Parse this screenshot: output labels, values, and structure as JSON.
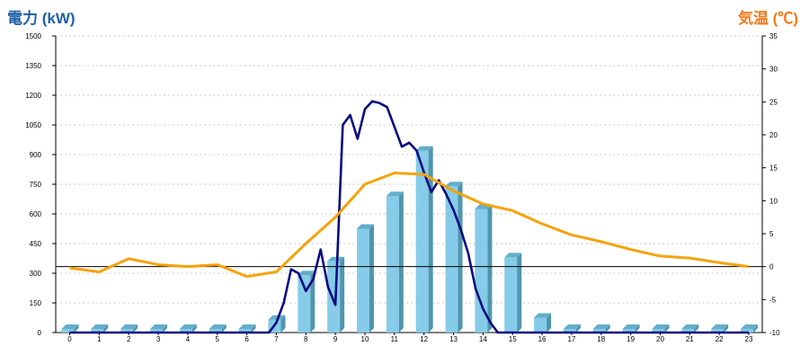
{
  "colors": {
    "left_axis_title": "#1f5fa8",
    "right_axis_title": "#f07a1a",
    "bar_front": "#86cbe8",
    "bar_side": "#4f95ad",
    "bar_top": "#63aec8",
    "power_line": "#0a0a80",
    "temp_line": "#f5a30a",
    "grid": "#c8c8c8",
    "zero_line": "#000000"
  },
  "chart_data": {
    "type": "bar",
    "ylabel": "電力 (kW)",
    "y2label": "気温 (℃)",
    "ylim": [
      0,
      1500
    ],
    "y2lim": [
      -10,
      35
    ],
    "yticks": [
      0,
      150,
      300,
      450,
      600,
      750,
      900,
      1050,
      1200,
      1350,
      1500
    ],
    "y2ticks": [
      -10,
      -5,
      0,
      5,
      10,
      15,
      20,
      25,
      30,
      35
    ],
    "grid": true,
    "categories": [
      "0",
      "1",
      "2",
      "3",
      "4",
      "5",
      "6",
      "7",
      "8",
      "9",
      "10",
      "11",
      "12",
      "13",
      "14",
      "15",
      "16",
      "17",
      "18",
      "19",
      "20",
      "21",
      "22",
      "23"
    ],
    "series": [
      {
        "type": "bar",
        "axis": "left",
        "values": [
          0,
          0,
          0,
          0,
          0,
          0,
          0,
          65,
          290,
          360,
          525,
          690,
          920,
          740,
          625,
          380,
          75,
          0,
          0,
          0,
          0,
          0,
          0,
          0
        ]
      },
      {
        "type": "line",
        "axis": "left",
        "x": [
          0,
          0.5,
          1,
          1.5,
          2,
          2.5,
          3,
          3.5,
          4,
          4.5,
          5,
          5.5,
          6,
          6.5,
          6.75,
          7,
          7.25,
          7.5,
          7.75,
          8,
          8.25,
          8.5,
          8.75,
          9,
          9.25,
          9.5,
          9.75,
          10,
          10.25,
          10.5,
          10.75,
          11,
          11.25,
          11.5,
          11.75,
          12,
          12.25,
          12.5,
          12.75,
          13,
          13.25,
          13.5,
          13.75,
          14,
          14.25,
          14.5,
          14.75,
          15,
          15.25,
          15.5,
          15.75,
          16,
          16.25,
          16.5,
          17,
          18,
          19,
          20,
          21,
          22,
          23
        ],
        "values": [
          0,
          0,
          0,
          0,
          0,
          0,
          0,
          0,
          0,
          0,
          0,
          0,
          0,
          0,
          0,
          50,
          150,
          320,
          300,
          210,
          270,
          420,
          230,
          140,
          1050,
          1100,
          980,
          1130,
          1170,
          1160,
          1140,
          1040,
          940,
          960,
          920,
          810,
          710,
          770,
          700,
          620,
          520,
          400,
          220,
          120,
          50,
          0,
          0,
          0,
          0,
          0,
          0,
          0,
          0,
          0,
          0,
          0,
          0,
          0,
          0,
          0,
          0
        ]
      },
      {
        "type": "line",
        "axis": "right",
        "values": [
          -0.2,
          -0.8,
          1.2,
          0.3,
          0,
          0.3,
          -1.5,
          -0.8,
          3.5,
          7.5,
          12.5,
          14.2,
          14,
          11.5,
          9.5,
          8.5,
          6.5,
          4.8,
          3.8,
          2.6,
          1.6,
          1.3,
          0.6,
          0
        ]
      }
    ]
  }
}
